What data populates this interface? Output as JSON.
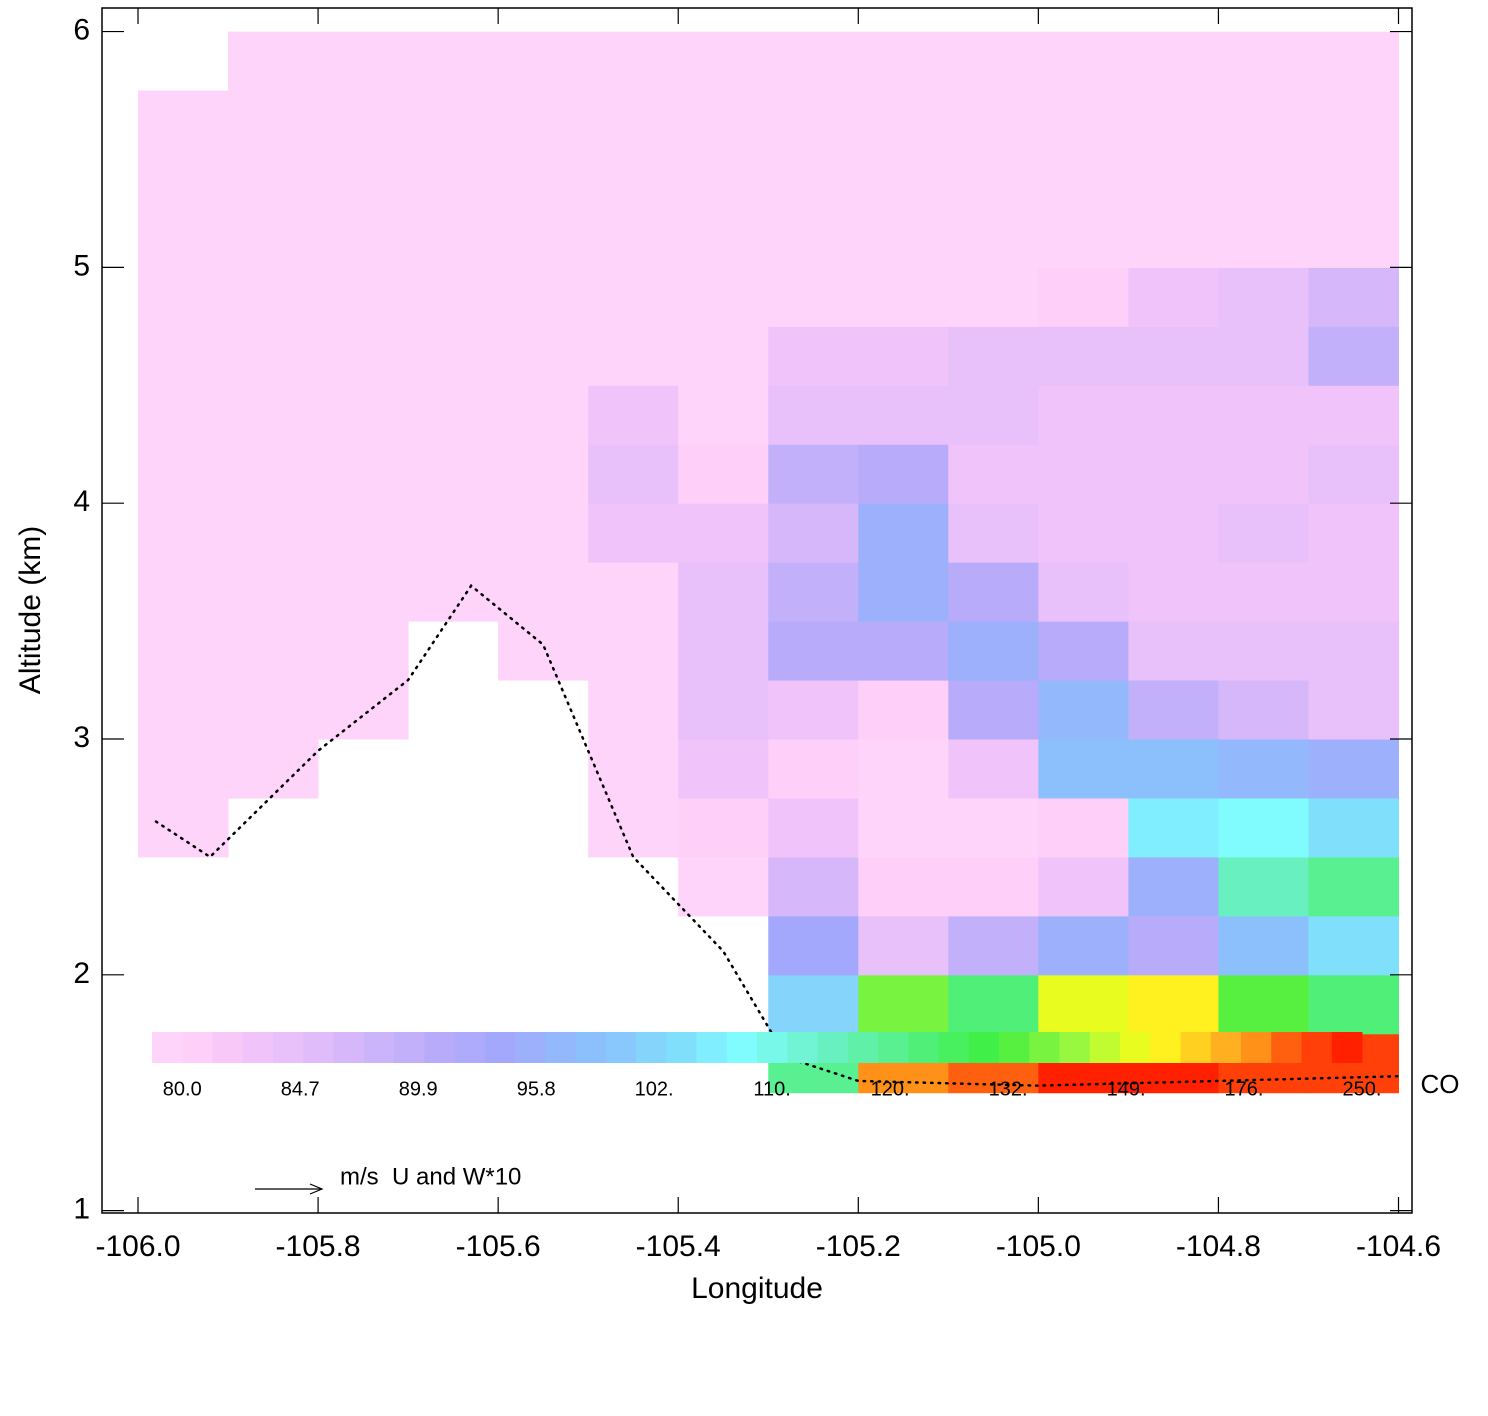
{
  "chart_data": {
    "type": "curtain",
    "xlabel": "Longitude",
    "ylabel": "Altitude (km)",
    "xlim": [
      -106.04,
      -104.585
    ],
    "ylim": [
      0.99,
      6.1
    ],
    "xticks": [
      {
        "value": -106.0,
        "label": "-106.0"
      },
      {
        "value": -105.8,
        "label": "-105.8"
      },
      {
        "value": -105.6,
        "label": "-105.6"
      },
      {
        "value": -105.4,
        "label": "-105.4"
      },
      {
        "value": -105.2,
        "label": "-105.2"
      },
      {
        "value": -105.0,
        "label": "-105.0"
      },
      {
        "value": -104.8,
        "label": "-104.8"
      },
      {
        "value": -104.6,
        "label": "-104.6"
      }
    ],
    "yticks": [
      1,
      2,
      3,
      4,
      5,
      6
    ],
    "x": [
      -105.95,
      -105.85,
      -105.75,
      -105.65,
      -105.55,
      -105.45,
      -105.35,
      -105.25,
      -105.15,
      -105.05,
      -104.95,
      -104.85,
      -104.75,
      -104.65
    ],
    "altitude_bands": [
      1.5,
      1.75,
      2.0,
      2.25,
      2.5,
      2.75,
      3.0,
      3.25,
      3.5,
      3.75,
      4.0,
      4.25,
      4.5,
      4.75,
      5.0,
      5.25,
      5.5,
      5.75,
      6.0
    ],
    "values": [
      [
        null,
        null,
        null,
        null,
        80,
        80,
        80,
        80,
        80,
        80,
        80,
        80,
        80,
        80,
        80,
        80,
        80,
        null
      ],
      [
        null,
        null,
        null,
        null,
        null,
        80,
        80,
        80,
        80,
        80,
        80,
        80,
        80,
        80,
        80,
        80,
        80,
        80
      ],
      [
        null,
        null,
        null,
        null,
        null,
        null,
        80,
        80,
        80,
        80,
        80,
        80,
        80,
        80,
        80,
        80,
        80,
        80
      ],
      [
        null,
        null,
        null,
        null,
        null,
        null,
        null,
        null,
        80,
        80,
        80,
        80,
        80,
        80,
        80,
        80,
        80,
        80
      ],
      [
        null,
        null,
        null,
        null,
        null,
        null,
        null,
        80,
        80,
        80,
        80,
        80,
        80,
        80,
        80,
        80,
        80,
        80
      ],
      [
        null,
        null,
        null,
        null,
        80,
        80,
        80,
        80,
        80,
        84,
        86,
        84,
        80,
        80,
        80,
        80,
        80,
        80
      ],
      [
        null,
        null,
        null,
        80,
        82,
        84,
        86,
        86,
        86,
        84,
        82,
        80,
        80,
        80,
        80,
        80,
        80,
        80
      ],
      [
        120,
        102,
        95,
        88,
        84,
        82,
        84,
        92,
        90,
        88,
        90,
        86,
        84,
        80,
        80,
        80,
        80,
        80
      ],
      [
        176,
        140,
        86,
        82,
        80,
        80,
        82,
        92,
        96,
        96,
        92,
        86,
        84,
        80,
        80,
        80,
        80,
        80
      ],
      [
        200,
        125,
        90,
        82,
        80,
        84,
        92,
        96,
        92,
        86,
        84,
        86,
        86,
        80,
        80,
        80,
        80,
        80
      ],
      [
        250,
        150,
        96,
        84,
        82,
        100,
        98,
        92,
        86,
        84,
        84,
        84,
        86,
        82,
        80,
        80,
        80,
        80
      ],
      [
        250,
        160,
        92,
        96,
        106,
        100,
        90,
        86,
        84,
        84,
        84,
        84,
        86,
        84,
        80,
        80,
        80,
        80
      ],
      [
        230,
        132,
        100,
        115,
        108,
        98,
        88,
        86,
        84,
        86,
        84,
        84,
        86,
        86,
        80,
        80,
        80,
        80
      ],
      [
        230,
        125,
        104,
        120,
        104,
        96,
        86,
        86,
        84,
        84,
        86,
        84,
        90,
        88,
        80,
        80,
        80,
        80
      ]
    ],
    "terrain": {
      "x": [
        -105.98,
        -105.92,
        -105.8,
        -105.7,
        -105.63,
        -105.55,
        -105.45,
        -105.35,
        -105.28,
        -105.2,
        -105.0,
        -104.8,
        -104.6
      ],
      "y": [
        2.65,
        2.5,
        2.95,
        3.25,
        3.65,
        3.4,
        2.5,
        2.1,
        1.65,
        1.55,
        1.53,
        1.55,
        1.57
      ]
    },
    "reference_label": "m/s  U and W*10",
    "colorbar": {
      "title": "CO",
      "colors": [
        "#ffd4fa",
        "#fdcff9",
        "#f8c8f8",
        "#f0c4fa",
        "#e8c0fa",
        "#e0bcfa",
        "#d6b8fa",
        "#ccb4fa",
        "#c2b0fa",
        "#b8acfa",
        "#aeaafc",
        "#a4a8fc",
        "#9cb0fc",
        "#94b8fc",
        "#8cc0fc",
        "#88c8fc",
        "#84d4fc",
        "#80e0fc",
        "#80eefe",
        "#80fcfe",
        "#78f8e8",
        "#70f4d4",
        "#68f0c0",
        "#60f0a8",
        "#58f090",
        "#50f078",
        "#48f060",
        "#40f048",
        "#58f040",
        "#78f440",
        "#98f840",
        "#c0fc30",
        "#e8fc20",
        "#fff020",
        "#ffd020",
        "#ffb020",
        "#ff9018",
        "#ff6010",
        "#ff4008",
        "#ff2000"
      ],
      "levels": [
        {
          "value": 80.0,
          "label": "80.0"
        },
        {
          "value": 84.7,
          "label": "84.7"
        },
        {
          "value": 89.9,
          "label": "89.9"
        },
        {
          "value": 95.8,
          "label": "95.8"
        },
        {
          "value": 102,
          "label": "102."
        },
        {
          "value": 110,
          "label": "110."
        },
        {
          "value": 120,
          "label": "120."
        },
        {
          "value": 132,
          "label": "132."
        },
        {
          "value": 149,
          "label": "149."
        },
        {
          "value": 176,
          "label": "176."
        },
        {
          "value": 250,
          "label": "250."
        }
      ]
    }
  }
}
